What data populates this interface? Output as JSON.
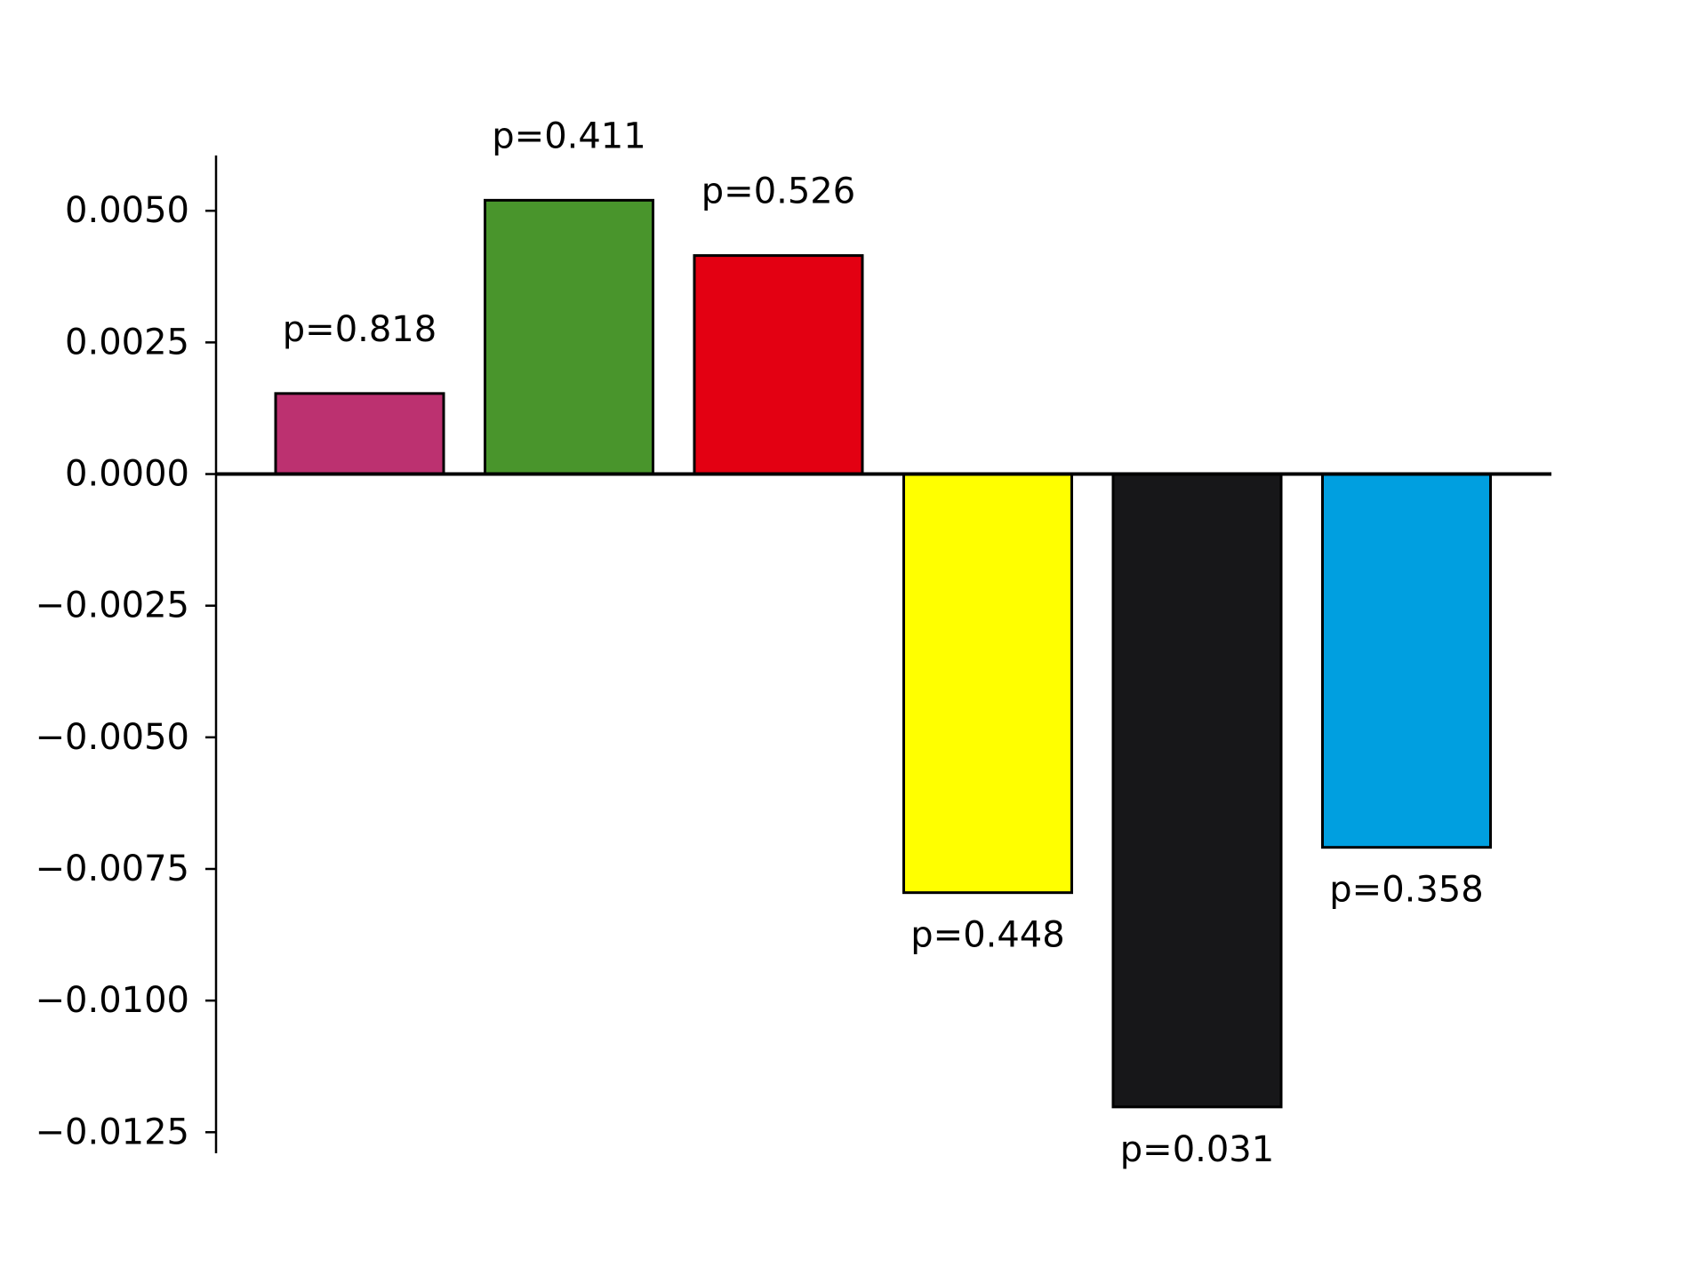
{
  "chart_data": {
    "type": "bar",
    "title": "",
    "xlabel": "",
    "ylabel": "",
    "categories": [
      "",
      "",
      "",
      "",
      "",
      ""
    ],
    "values": [
      0.00153,
      0.0052,
      0.00415,
      -0.00795,
      -0.01202,
      -0.00709
    ],
    "colors": [
      "#BC3170",
      "#49952C",
      "#E30012",
      "#FFFF00",
      "#171719",
      "#009FE0"
    ],
    "data_labels": [
      "p=0.818",
      "p=0.411",
      "p=0.526",
      "p=0.448",
      "p=0.031",
      "p=0.358"
    ],
    "ylim": [
      -0.0129,
      0.00605
    ],
    "yticks": [
      0.005,
      0.0025,
      0.0,
      -0.0025,
      -0.005,
      -0.0075,
      -0.01,
      -0.0125
    ],
    "ytick_labels": [
      "0.0050",
      "0.0025",
      "0.0000",
      "−0.0025",
      "−0.0050",
      "−0.0075",
      "−0.0100",
      "−0.0125"
    ],
    "grid": false,
    "legend": "none",
    "zero_line": true
  }
}
